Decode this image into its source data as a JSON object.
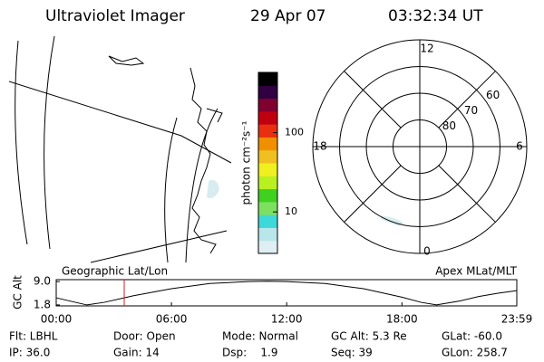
{
  "header": {
    "title": "Ultraviolet Imager",
    "date": "29 Apr 07",
    "time": "03:32:34 UT"
  },
  "map_label": "Geographic Lat/Lon",
  "chart_data": [
    {
      "type": "colorbar",
      "label": "photon cm⁻²s⁻¹",
      "log": true,
      "ylim": [
        3,
        575
      ],
      "yticks": [
        10,
        100
      ],
      "colors": [
        "#dfeef2",
        "#b8e6ea",
        "#3fd8d8",
        "#7ee060",
        "#40d020",
        "#b8f020",
        "#f0f020",
        "#f0c020",
        "#f09000",
        "#e83010",
        "#c00010",
        "#800030",
        "#300040",
        "#000000"
      ]
    },
    {
      "type": "polar",
      "label": "Apex MLat/MLT",
      "rlim": [
        90,
        50
      ],
      "rticks": [
        60,
        70,
        80
      ],
      "thetaticks": [
        12,
        18,
        0,
        6
      ]
    },
    {
      "type": "line",
      "ylabel": "GC Alt",
      "xlim": [
        0,
        23.98
      ],
      "xticks": [
        {
          "value": 0,
          "label": "00:00"
        },
        {
          "value": 6,
          "label": "06:00"
        },
        {
          "value": 12,
          "label": "12:00"
        },
        {
          "value": 18,
          "label": "18:00"
        },
        {
          "value": 23.98,
          "label": "23:59"
        }
      ],
      "ylim": [
        1.5,
        9.6
      ],
      "yticks": [
        {
          "value": 1.8,
          "label": "1.8"
        },
        {
          "value": 9.0,
          "label": "9.0"
        }
      ],
      "x": [
        0,
        1,
        1.6,
        2.5,
        4,
        6,
        8,
        10,
        11,
        12,
        14,
        16,
        18,
        19,
        19.8,
        21,
        22,
        23,
        23.98
      ],
      "values": [
        4.0,
        2.6,
        1.8,
        2.6,
        4.6,
        6.8,
        8.4,
        9.0,
        9.1,
        9.0,
        8.4,
        6.8,
        4.2,
        2.6,
        1.8,
        3.0,
        4.4,
        5.4,
        6.2
      ],
      "color": "#000000",
      "marker": 3.54,
      "marker_color": "#d02020"
    }
  ],
  "footer": [
    [
      "Flt: LBHL",
      "Door: Open",
      "Mode: Normal",
      "GC Alt: 5.3 Re",
      "GLat: -60.0"
    ],
    [
      "IP: 36.0",
      "Gain: 14",
      "Dsp:    1.9",
      "Seq: 39",
      "GLon: 258.7"
    ]
  ]
}
